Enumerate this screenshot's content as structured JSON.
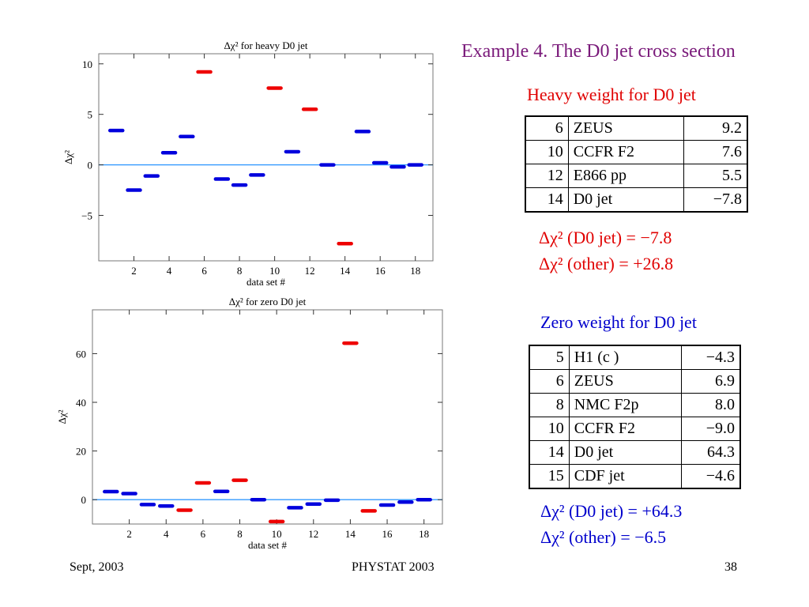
{
  "slide": {
    "title": "Example 4. The D0 jet cross section",
    "footer_left": "Sept, 2003",
    "footer_center": "PHYSTAT 2003",
    "footer_right": "38"
  },
  "colors": {
    "blue": "#0000dd",
    "red": "#ee0000",
    "zero_line": "#3399ff"
  },
  "heavy": {
    "heading": "Heavy weight for D0 jet",
    "rows": [
      {
        "n": "6",
        "name": "ZEUS",
        "value": "9.2"
      },
      {
        "n": "10",
        "name": "CCFR F2",
        "value": "7.6"
      },
      {
        "n": "12",
        "name": "E866 pp",
        "value": "5.5"
      },
      {
        "n": "14",
        "name": "D0 jet",
        "value": "−7.8"
      }
    ],
    "summary_line1": "Δχ² (D0 jet) = −7.8",
    "summary_line2": "Δχ² (other) = +26.8"
  },
  "zero": {
    "heading": "Zero weight for D0 jet",
    "rows": [
      {
        "n": "5",
        "name": "H1 (c )",
        "value": "−4.3"
      },
      {
        "n": "6",
        "name": "ZEUS",
        "value": "6.9"
      },
      {
        "n": "8",
        "name": "NMC F2p",
        "value": "8.0"
      },
      {
        "n": "10",
        "name": "CCFR F2",
        "value": "−9.0"
      },
      {
        "n": "14",
        "name": "D0 jet",
        "value": "64.3"
      },
      {
        "n": "15",
        "name": "CDF jet",
        "value": "−4.6"
      }
    ],
    "summary_line1": "Δχ² (D0 jet) = +64.3",
    "summary_line2": "Δχ² (other) = −6.5"
  },
  "chart_data": [
    {
      "type": "scatter",
      "title": "Δχ² for heavy D0 jet",
      "xlabel": "data set #",
      "ylabel": "Δχ²",
      "xlim": [
        0,
        19
      ],
      "ylim": [
        -9.5,
        11
      ],
      "xticks": [
        2,
        4,
        6,
        8,
        10,
        12,
        14,
        16,
        18
      ],
      "yticks": [
        -5,
        0,
        5,
        10
      ],
      "ytick_labels": [
        "−5",
        "0",
        "5",
        "10"
      ],
      "zero_line": true,
      "x": [
        1,
        2,
        3,
        4,
        5,
        6,
        7,
        8,
        9,
        10,
        11,
        12,
        13,
        14,
        15,
        16,
        17,
        18
      ],
      "y": [
        3.4,
        -2.5,
        -1.1,
        1.2,
        2.8,
        9.2,
        -1.4,
        -2.0,
        -1.0,
        7.6,
        1.3,
        5.5,
        0.0,
        -7.8,
        3.3,
        0.2,
        -0.2,
        0.0
      ],
      "highlighted": [
        6,
        10,
        12,
        14
      ]
    },
    {
      "type": "scatter",
      "title": "Δχ² for zero D0 jet",
      "xlabel": "data set #",
      "ylabel": "Δχ²",
      "xlim": [
        0,
        19
      ],
      "ylim": [
        -10,
        78
      ],
      "xticks": [
        2,
        4,
        6,
        8,
        10,
        12,
        14,
        16,
        18
      ],
      "yticks": [
        0,
        20,
        40,
        60
      ],
      "ytick_labels": [
        "0",
        "20",
        "40",
        "60"
      ],
      "zero_line": true,
      "x": [
        1,
        2,
        3,
        4,
        5,
        6,
        7,
        8,
        9,
        10,
        11,
        12,
        13,
        14,
        15,
        16,
        17,
        18
      ],
      "y": [
        3.3,
        2.5,
        -2.0,
        -2.6,
        -4.3,
        6.9,
        3.4,
        8.0,
        0.0,
        -9.0,
        -3.3,
        -1.8,
        -0.2,
        64.3,
        -4.6,
        -2.2,
        -1.0,
        0.0
      ],
      "highlighted": [
        5,
        6,
        8,
        10,
        14,
        15
      ]
    }
  ]
}
